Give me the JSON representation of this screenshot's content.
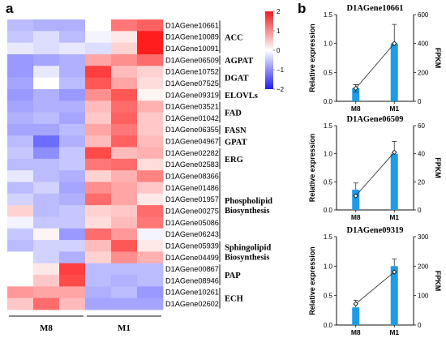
{
  "panel_a": "a",
  "panel_b": "b",
  "colors": {
    "low": "#1d1dff",
    "mid": "#ffffff",
    "high": "#ff1d1d",
    "bar": "#1e9be6"
  },
  "chart_data": [
    {
      "type": "heatmap",
      "panel": "a",
      "columns": [
        "M8",
        "M1"
      ],
      "column_groups": [
        {
          "label": "M8",
          "samples": 3
        },
        {
          "label": "M1",
          "samples": 3
        }
      ],
      "rows": [
        "D1AGene10661",
        "D1AGene10089",
        "D1AGene10091",
        "D1AGene06509",
        "D1AGene10752",
        "D1AGene07525",
        "D1AGene09319",
        "D1AGene03521",
        "D1AGene01042",
        "D1AGene06355",
        "D1AGene04967",
        "D1AGene02282",
        "D1AGene02583",
        "D1AGene08366",
        "D1AGene01486",
        "D1AGene01957",
        "D1AGene00275",
        "D1AGene05086",
        "D1AGene06243",
        "D1AGene05939",
        "D1AGene04499",
        "D1AGene00867",
        "D1AGene08946",
        "D1AGene10261",
        "D1AGene02602"
      ],
      "values": [
        [
          -0.6,
          -0.7,
          -0.7,
          0.0,
          1.2,
          1.4
        ],
        [
          -0.5,
          -0.3,
          -0.6,
          -0.1,
          0.2,
          2.0
        ],
        [
          -0.2,
          -0.3,
          -0.2,
          -0.3,
          0.4,
          2.0
        ],
        [
          -0.9,
          -0.8,
          -0.7,
          0.8,
          1.0,
          1.3
        ],
        [
          -0.9,
          -0.2,
          -0.7,
          1.7,
          0.6,
          0.4
        ],
        [
          -0.8,
          0.0,
          -0.6,
          1.5,
          0.8,
          0.3
        ],
        [
          -0.9,
          -0.7,
          -0.9,
          1.0,
          1.5,
          0.1
        ],
        [
          -0.8,
          -0.7,
          -0.7,
          0.6,
          1.3,
          0.7
        ],
        [
          -0.7,
          -0.6,
          -0.8,
          0.5,
          1.4,
          0.5
        ],
        [
          -0.8,
          -0.8,
          -0.6,
          0.8,
          1.2,
          0.5
        ],
        [
          -0.6,
          -1.3,
          -0.7,
          0.6,
          1.4,
          0.6
        ],
        [
          -0.5,
          -1.0,
          -0.5,
          1.6,
          0.6,
          0.7
        ],
        [
          -0.6,
          -0.6,
          -0.5,
          1.2,
          1.3,
          0.3
        ],
        [
          -0.2,
          -0.6,
          -0.7,
          0.4,
          0.7,
          1.1
        ],
        [
          -0.6,
          -0.4,
          -0.8,
          1.0,
          0.8,
          0.5
        ],
        [
          -0.4,
          -0.6,
          -0.7,
          1.3,
          0.8,
          0.2
        ],
        [
          0.4,
          -0.6,
          -0.5,
          0.4,
          0.5,
          1.3
        ],
        [
          -0.1,
          -0.5,
          -0.5,
          0.3,
          0.6,
          1.2
        ],
        [
          -0.5,
          0.1,
          -0.9,
          1.3,
          0.9,
          -0.1
        ],
        [
          -0.6,
          -0.4,
          -0.4,
          0.6,
          1.5,
          0.2
        ],
        [
          0.0,
          -0.4,
          -0.7,
          0.4,
          1.0,
          0.7
        ],
        [
          0.0,
          0.2,
          1.7,
          -0.6,
          -0.6,
          -0.6
        ],
        [
          0.0,
          0.5,
          1.6,
          -0.6,
          -0.7,
          -0.6
        ],
        [
          0.9,
          0.8,
          0.8,
          -0.7,
          -0.6,
          -0.9
        ],
        [
          0.5,
          1.3,
          0.6,
          -0.8,
          -0.8,
          -0.8
        ]
      ],
      "row_groups": [
        {
          "label": [
            "ACC"
          ],
          "start": 0,
          "end": 2
        },
        {
          "label": [
            "AGPAT"
          ],
          "start": 3,
          "end": 3
        },
        {
          "label": [
            "DGAT"
          ],
          "start": 4,
          "end": 5
        },
        {
          "label": [
            "ELOVLs"
          ],
          "start": 6,
          "end": 6
        },
        {
          "label": [
            "FAD"
          ],
          "start": 7,
          "end": 8
        },
        {
          "label": [
            "FASN"
          ],
          "start": 9,
          "end": 9
        },
        {
          "label": [
            "GPAT"
          ],
          "start": 10,
          "end": 10
        },
        {
          "label": [
            "ERG"
          ],
          "start": 11,
          "end": 12
        },
        {
          "label": [
            "Phospholipid",
            "Biosynthesis"
          ],
          "start": 13,
          "end": 18
        },
        {
          "label": [
            "Sphingolipid",
            "Biosynthesis"
          ],
          "start": 19,
          "end": 20
        },
        {
          "label": [
            "PAP"
          ],
          "start": 21,
          "end": 22
        },
        {
          "label": [
            "ECH"
          ],
          "start": 23,
          "end": 24
        }
      ],
      "color_scale": {
        "min": -2,
        "max": 2,
        "ticks": [
          "2",
          "1",
          "0",
          "−1",
          "−2"
        ]
      }
    },
    {
      "type": "bar+line",
      "panel": "b",
      "title": "D1AGene10661",
      "categories": [
        "M8",
        "M1"
      ],
      "ylabel_left": "Relative expression",
      "ylabel_right": "FPKM",
      "ylim_left": [
        0,
        1.5
      ],
      "yticks_left": [
        "0.0",
        "0.5",
        "1.0",
        "1.5"
      ],
      "ylim_right": [
        0,
        600
      ],
      "yticks_right": [
        "0",
        "200",
        "400",
        "600"
      ],
      "bars": [
        0.23,
        1.0
      ],
      "bar_errors": [
        0.06,
        0.33
      ],
      "line": [
        90,
        400
      ],
      "line_errors": [
        25,
        0
      ]
    },
    {
      "type": "bar+line",
      "panel": "b",
      "title": "D1AGene06509",
      "categories": [
        "M8",
        "M1"
      ],
      "ylabel_left": "Relative expression",
      "ylabel_right": "FPKM",
      "ylim_left": [
        0,
        1.5
      ],
      "yticks_left": [
        "0.0",
        "0.5",
        "1.0",
        "1.5"
      ],
      "ylim_right": [
        0,
        60
      ],
      "yticks_right": [
        "0",
        "20",
        "40",
        "60"
      ],
      "bars": [
        0.36,
        1.0
      ],
      "bar_errors": [
        0.12,
        0.22
      ],
      "line": [
        10,
        41
      ],
      "line_errors": [
        0,
        0
      ]
    },
    {
      "type": "bar+line",
      "panel": "b",
      "title": "D1AGene09319",
      "categories": [
        "M8",
        "M1"
      ],
      "ylabel_left": "Relative expression",
      "ylabel_right": "FPKM",
      "ylim_left": [
        0,
        1.5
      ],
      "yticks_left": [
        "0.0",
        "0.5",
        "1.0",
        "1.5"
      ],
      "ylim_right": [
        0,
        300
      ],
      "yticks_right": [
        "0",
        "100",
        "200",
        "300"
      ],
      "bars": [
        0.3,
        1.0
      ],
      "bar_errors": [
        0.12,
        0.12
      ],
      "line": [
        72,
        180
      ],
      "line_errors": [
        0,
        0
      ]
    }
  ]
}
